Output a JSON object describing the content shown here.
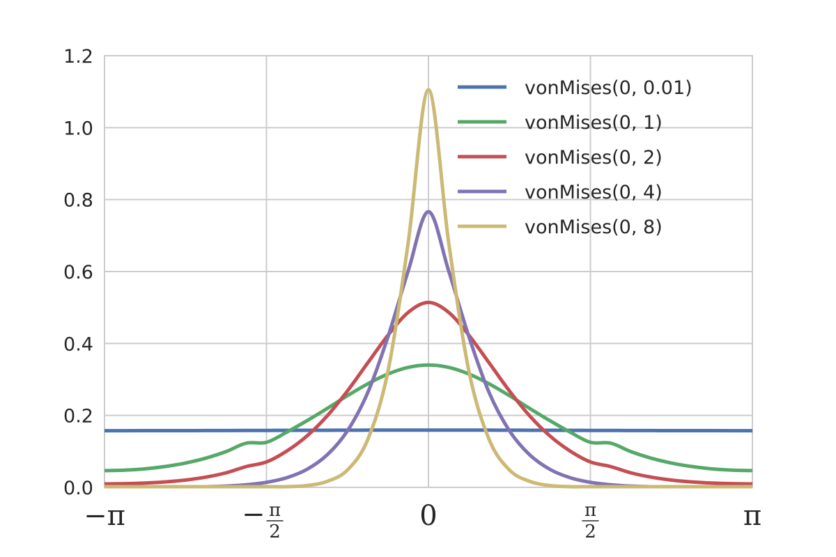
{
  "chart_data": {
    "type": "line",
    "title": "",
    "xlabel": "",
    "ylabel": "",
    "xlim": [
      -3.14159265,
      3.14159265
    ],
    "ylim": [
      0,
      1.2
    ],
    "grid": true,
    "legend_position": "top-right",
    "x_ticks": [
      {
        "value": -3.14159265,
        "sign": "−",
        "symbol": "π",
        "denominator": ""
      },
      {
        "value": -1.57079633,
        "sign": "−",
        "symbol": "π",
        "denominator": "2"
      },
      {
        "value": 0,
        "sign": "",
        "symbol": "0",
        "denominator": ""
      },
      {
        "value": 1.57079633,
        "sign": "",
        "symbol": "π",
        "denominator": "2"
      },
      {
        "value": 3.14159265,
        "sign": "",
        "symbol": "π",
        "denominator": ""
      }
    ],
    "y_ticks": [
      "0.0",
      "0.2",
      "0.4",
      "0.6",
      "0.8",
      "1.0",
      "1.2"
    ],
    "x": [
      -3.1416,
      -2.9452,
      -2.7489,
      -2.5525,
      -2.3562,
      -2.1598,
      -1.9635,
      -1.7671,
      -1.5708,
      -1.3744,
      -1.1781,
      -0.9817,
      -0.7854,
      -0.589,
      -0.3927,
      -0.1963,
      0,
      0.1963,
      0.3927,
      0.589,
      0.7854,
      0.9817,
      1.1781,
      1.3744,
      1.5708,
      1.7671,
      1.9635,
      2.1598,
      2.3562,
      2.5525,
      2.7489,
      2.9452,
      3.1416
    ],
    "series": [
      {
        "name": "vonMises(0, 0.01)",
        "color": "#4c72b0",
        "values": [
          0.1576,
          0.1576,
          0.1577,
          0.1577,
          0.1578,
          0.1579,
          0.158,
          0.1582,
          0.1583,
          0.1585,
          0.1587,
          0.1588,
          0.159,
          0.1591,
          0.1592,
          0.1593,
          0.1593,
          0.1593,
          0.1592,
          0.1591,
          0.159,
          0.1588,
          0.1587,
          0.1585,
          0.1583,
          0.1582,
          0.158,
          0.1579,
          0.1578,
          0.1577,
          0.1577,
          0.1576,
          0.1576
        ]
      },
      {
        "name": "vonMises(0, 1)",
        "color": "#55a868",
        "values": [
          0.0466,
          0.0478,
          0.0515,
          0.058,
          0.0677,
          0.0812,
          0.0994,
          0.1229,
          0.1253,
          0.1535,
          0.1854,
          0.2195,
          0.2549,
          0.2878,
          0.3152,
          0.3336,
          0.3401,
          0.3336,
          0.3152,
          0.2878,
          0.2549,
          0.2195,
          0.1854,
          0.1535,
          0.1253,
          0.1229,
          0.0994,
          0.0812,
          0.0677,
          0.058,
          0.0515,
          0.0478,
          0.0466
        ]
      },
      {
        "name": "vonMises(0, 2)",
        "color": "#c44e52",
        "values": [
          0.0097,
          0.0103,
          0.012,
          0.0152,
          0.0204,
          0.0284,
          0.0404,
          0.0578,
          0.0707,
          0.1009,
          0.1429,
          0.1988,
          0.2681,
          0.3459,
          0.4228,
          0.4865,
          0.5141,
          0.4865,
          0.4228,
          0.3459,
          0.2681,
          0.1988,
          0.1429,
          0.1009,
          0.0707,
          0.0578,
          0.0404,
          0.0284,
          0.0204,
          0.0152,
          0.012,
          0.0103,
          0.0097
        ]
      },
      {
        "name": "vonMises(0, 4)",
        "color": "#8172b2",
        "values": [
          0.0002,
          0.0002,
          0.0003,
          0.0005,
          0.0009,
          0.0018,
          0.0036,
          0.0072,
          0.0141,
          0.0269,
          0.0501,
          0.0905,
          0.1573,
          0.2632,
          0.4185,
          0.6017,
          0.7665,
          0.6017,
          0.4185,
          0.2632,
          0.1573,
          0.0905,
          0.0501,
          0.0269,
          0.0141,
          0.0072,
          0.0036,
          0.0018,
          0.0009,
          0.0005,
          0.0003,
          0.0002,
          0.0002
        ]
      },
      {
        "name": "vonMises(0, 8)",
        "color": "#ccb974",
        "values": [
          0.0,
          0.0,
          0.0,
          0.0,
          0.0,
          0.0,
          0.0,
          0.0,
          0.0004,
          0.0015,
          0.0051,
          0.0168,
          0.0483,
          0.1328,
          0.3228,
          0.6804,
          1.1053,
          0.6804,
          0.3228,
          0.1328,
          0.0483,
          0.0168,
          0.0051,
          0.0015,
          0.0004,
          0.0,
          0.0,
          0.0,
          0.0,
          0.0,
          0.0,
          0.0,
          0.0
        ]
      }
    ]
  }
}
